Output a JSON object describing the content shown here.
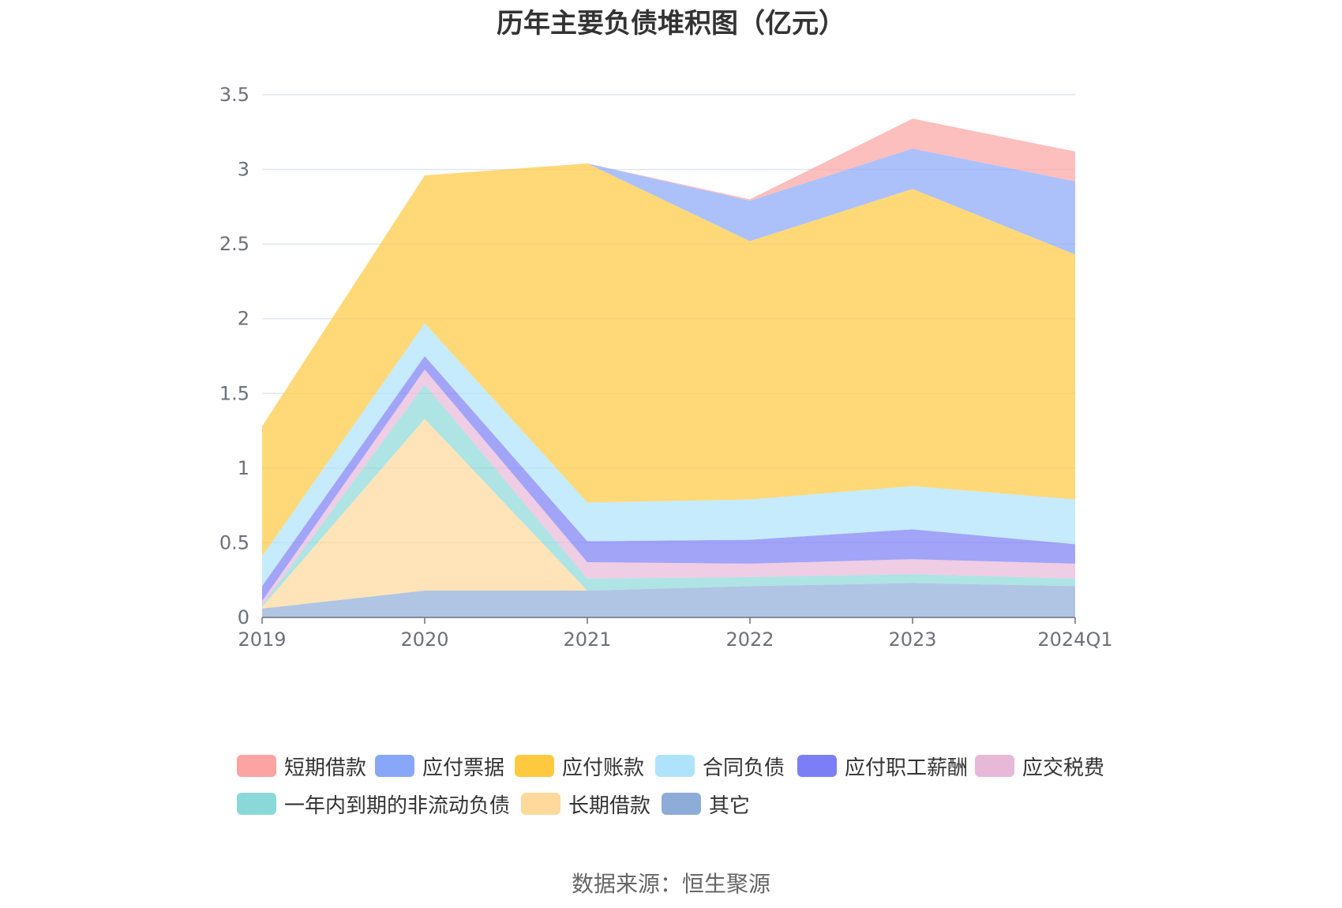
{
  "chart_data": {
    "type": "area",
    "stacked": true,
    "title": "历年主要负债堆积图（亿元）",
    "categories": [
      "2019",
      "2020",
      "2021",
      "2022",
      "2023",
      "2024Q1"
    ],
    "ylim": [
      0,
      3.5
    ],
    "yticks": [
      "0",
      "0.5",
      "1",
      "1.5",
      "2",
      "2.5",
      "3",
      "3.5"
    ],
    "grid": true,
    "legend_position": "bottom",
    "series": [
      {
        "name": "其它",
        "color": "#8eacd8",
        "values": [
          0.06,
          0.18,
          0.18,
          0.21,
          0.23,
          0.21
        ]
      },
      {
        "name": "长期借款",
        "color": "#ffd99b",
        "values": [
          0.01,
          1.15,
          0.0,
          0.0,
          0.0,
          0.0
        ]
      },
      {
        "name": "一年内到期的非流动负债",
        "color": "#8bd8d8",
        "values": [
          0.01,
          0.23,
          0.08,
          0.06,
          0.06,
          0.05
        ]
      },
      {
        "name": "应交税费",
        "color": "#e8b8d8",
        "values": [
          0.03,
          0.1,
          0.11,
          0.09,
          0.1,
          0.1
        ]
      },
      {
        "name": "应付职工薪酬",
        "color": "#7b7ef5",
        "values": [
          0.1,
          0.09,
          0.14,
          0.16,
          0.2,
          0.13
        ]
      },
      {
        "name": "合同负债",
        "color": "#aee3fb",
        "values": [
          0.2,
          0.22,
          0.26,
          0.27,
          0.29,
          0.3
        ]
      },
      {
        "name": "应付账款",
        "color": "#ffc93f",
        "values": [
          0.87,
          0.99,
          2.27,
          1.73,
          1.99,
          1.64
        ]
      },
      {
        "name": "应付票据",
        "color": "#89a7f8",
        "values": [
          0.0,
          0.0,
          0.0,
          0.27,
          0.27,
          0.49
        ]
      },
      {
        "name": "短期借款",
        "color": "#fca3a3",
        "values": [
          0.0,
          0.0,
          0.0,
          0.01,
          0.2,
          0.2
        ]
      }
    ]
  },
  "legend": {
    "items": [
      {
        "name": "短期借款",
        "color": "#fca3a3"
      },
      {
        "name": "应付票据",
        "color": "#89a7f8"
      },
      {
        "name": "应付账款",
        "color": "#ffc93f"
      },
      {
        "name": "合同负债",
        "color": "#aee3fb"
      },
      {
        "name": "应付职工薪酬",
        "color": "#7b7ef5"
      },
      {
        "name": "应交税费",
        "color": "#e8b8d8"
      },
      {
        "name": "一年内到期的非流动负债",
        "color": "#8bd8d8"
      },
      {
        "name": "长期借款",
        "color": "#ffd99b"
      },
      {
        "name": "其它",
        "color": "#8eacd8"
      }
    ]
  },
  "source": "数据来源：恒生聚源"
}
